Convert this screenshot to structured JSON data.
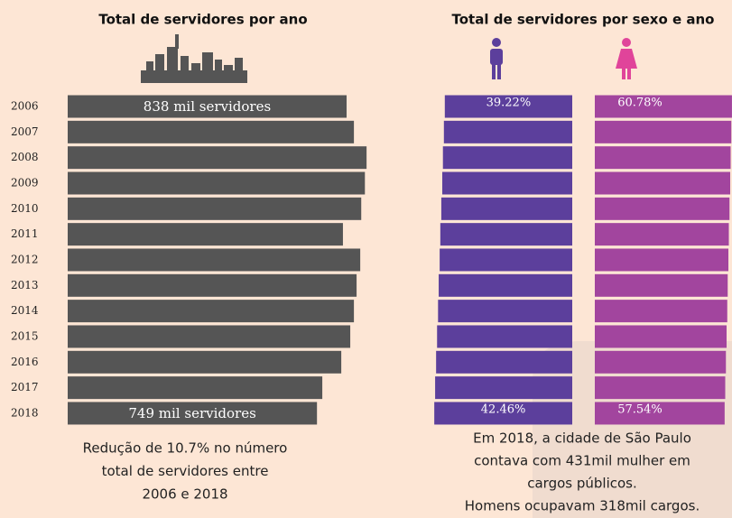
{
  "chart_data": [
    {
      "type": "hbar",
      "title": "Total de servidores por ano",
      "categories": [
        "2006",
        "2007",
        "2008",
        "2009",
        "2010",
        "2011",
        "2012",
        "2013",
        "2014",
        "2015",
        "2016",
        "2017",
        "2018"
      ],
      "values": [
        838,
        860,
        898,
        893,
        882,
        827,
        879,
        868,
        860,
        849,
        822,
        765,
        749
      ],
      "value_labels": [
        "838 mil servidores",
        null,
        null,
        null,
        null,
        null,
        null,
        null,
        null,
        null,
        null,
        null,
        "749 mil servidores"
      ],
      "color": "#555555",
      "caption": [
        "Redução de 10.7% no número",
        "total  de servidores entre",
        "2006 e 2018"
      ]
    },
    {
      "type": "butterfly",
      "title": "Total de servidores por sexo e ano",
      "series": [
        {
          "color": "#5c3f9c",
          "values": [
            39.22,
            39.5,
            39.8,
            40.0,
            40.3,
            40.6,
            40.8,
            41.1,
            41.3,
            41.6,
            41.9,
            42.2,
            42.46
          ],
          "value_labels": [
            "39.22%",
            null,
            null,
            null,
            null,
            null,
            null,
            null,
            null,
            null,
            null,
            null,
            "42.46%"
          ]
        },
        {
          "color": "#a2459e",
          "values": [
            60.78,
            60.5,
            60.2,
            60.0,
            59.7,
            59.4,
            59.2,
            58.9,
            58.7,
            58.4,
            58.1,
            57.8,
            57.54
          ],
          "value_labels": [
            "60.78%",
            null,
            null,
            null,
            null,
            null,
            null,
            null,
            null,
            null,
            null,
            null,
            "57.54%"
          ]
        }
      ],
      "caption": [
        "Em 2018, a cidade de São Paulo",
        "contava com 431mil mulher em",
        "cargos públicos.",
        "Homens ocupavam 318mil cargos."
      ]
    }
  ]
}
